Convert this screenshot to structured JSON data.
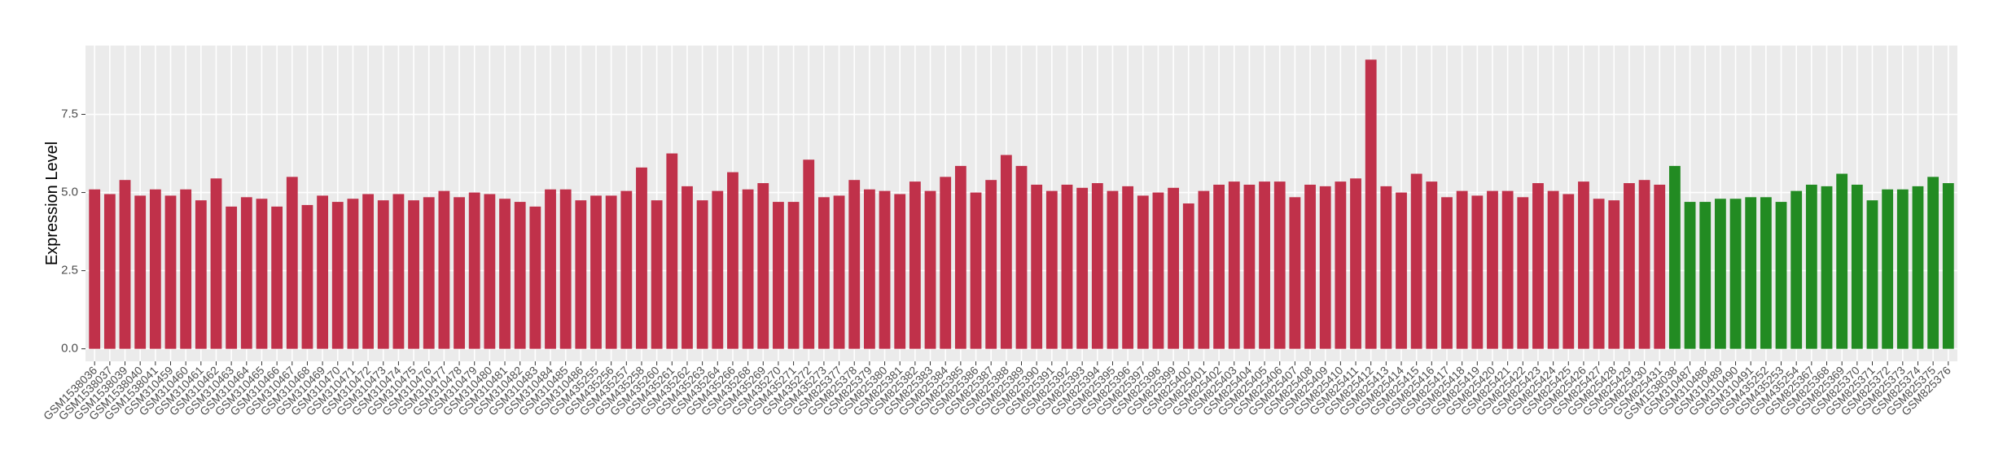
{
  "chart_data": {
    "type": "bar",
    "y_label": "Expression Level",
    "categories": [
      "GSM1538036",
      "GSM1538037",
      "GSM1538039",
      "GSM1538040",
      "GSM1538041",
      "GSM310459",
      "GSM310460",
      "GSM310461",
      "GSM310462",
      "GSM310463",
      "GSM310464",
      "GSM310465",
      "GSM310466",
      "GSM310467",
      "GSM310468",
      "GSM310469",
      "GSM310470",
      "GSM310471",
      "GSM310472",
      "GSM310473",
      "GSM310474",
      "GSM310475",
      "GSM310476",
      "GSM310477",
      "GSM310478",
      "GSM310479",
      "GSM310480",
      "GSM310481",
      "GSM310482",
      "GSM310483",
      "GSM310484",
      "GSM310485",
      "GSM310486",
      "GSM435255",
      "GSM435256",
      "GSM435257",
      "GSM435258",
      "GSM435260",
      "GSM435261",
      "GSM435262",
      "GSM435263",
      "GSM435264",
      "GSM435266",
      "GSM435268",
      "GSM435269",
      "GSM435270",
      "GSM435271",
      "GSM435272",
      "GSM435273",
      "GSM825377",
      "GSM825378",
      "GSM825379",
      "GSM825380",
      "GSM825381",
      "GSM825382",
      "GSM825383",
      "GSM825384",
      "GSM825385",
      "GSM825386",
      "GSM825387",
      "GSM825388",
      "GSM825389",
      "GSM825390",
      "GSM825391",
      "GSM825392",
      "GSM825393",
      "GSM825394",
      "GSM825395",
      "GSM825396",
      "GSM825397",
      "GSM825398",
      "GSM825399",
      "GSM825400",
      "GSM825401",
      "GSM825402",
      "GSM825403",
      "GSM825404",
      "GSM825405",
      "GSM825406",
      "GSM825407",
      "GSM825408",
      "GSM825409",
      "GSM825410",
      "GSM825411",
      "GSM825412",
      "GSM825413",
      "GSM825414",
      "GSM825415",
      "GSM825416",
      "GSM825417",
      "GSM825418",
      "GSM825419",
      "GSM825420",
      "GSM825421",
      "GSM825422",
      "GSM825423",
      "GSM825424",
      "GSM825425",
      "GSM825426",
      "GSM825427",
      "GSM825428",
      "GSM825429",
      "GSM825430",
      "GSM825431",
      "GSM1538038",
      "GSM310487",
      "GSM310488",
      "GSM310489",
      "GSM310490",
      "GSM310491",
      "GSM435252",
      "GSM435253",
      "GSM435254",
      "GSM825367",
      "GSM825368",
      "GSM825369",
      "GSM825370",
      "GSM825371",
      "GSM825372",
      "GSM825373",
      "GSM825374",
      "GSM825375",
      "GSM825376"
    ],
    "values": [
      5.1,
      4.95,
      5.4,
      4.9,
      5.1,
      4.9,
      5.1,
      4.75,
      5.45,
      4.55,
      4.85,
      4.8,
      4.55,
      5.5,
      4.6,
      4.9,
      4.7,
      4.8,
      4.95,
      4.75,
      4.95,
      4.75,
      4.85,
      5.05,
      4.85,
      5.0,
      4.95,
      4.8,
      4.7,
      4.55,
      5.1,
      5.1,
      4.75,
      4.9,
      4.9,
      5.05,
      5.8,
      4.75,
      6.25,
      5.2,
      4.75,
      5.05,
      5.65,
      5.1,
      5.3,
      4.7,
      4.7,
      6.05,
      4.85,
      4.9,
      5.4,
      5.1,
      5.05,
      4.95,
      5.35,
      5.05,
      5.5,
      5.85,
      5.0,
      5.4,
      6.2,
      5.85,
      5.25,
      5.05,
      5.25,
      5.15,
      5.3,
      5.05,
      5.2,
      4.9,
      5.0,
      5.15,
      4.65,
      5.05,
      5.25,
      5.35,
      5.25,
      5.35,
      5.35,
      4.85,
      5.25,
      5.2,
      5.35,
      5.45,
      9.25,
      5.2,
      5.0,
      5.6,
      5.35,
      4.85,
      5.05,
      4.9,
      5.05,
      5.05,
      4.85,
      5.3,
      5.05,
      4.95,
      5.35,
      4.8,
      4.75,
      5.3,
      5.4,
      5.25,
      5.85,
      4.7,
      4.7,
      4.8,
      4.8,
      4.85,
      4.85,
      4.7,
      5.05,
      5.25,
      5.2,
      5.6,
      5.25,
      4.75,
      5.1,
      5.1,
      5.2,
      5.5,
      5.3
    ],
    "colors": [
      "#c0314a",
      "#c0314a",
      "#c0314a",
      "#c0314a",
      "#c0314a",
      "#c0314a",
      "#c0314a",
      "#c0314a",
      "#c0314a",
      "#c0314a",
      "#c0314a",
      "#c0314a",
      "#c0314a",
      "#c0314a",
      "#c0314a",
      "#c0314a",
      "#c0314a",
      "#c0314a",
      "#c0314a",
      "#c0314a",
      "#c0314a",
      "#c0314a",
      "#c0314a",
      "#c0314a",
      "#c0314a",
      "#c0314a",
      "#c0314a",
      "#c0314a",
      "#c0314a",
      "#c0314a",
      "#c0314a",
      "#c0314a",
      "#c0314a",
      "#c0314a",
      "#c0314a",
      "#c0314a",
      "#c0314a",
      "#c0314a",
      "#c0314a",
      "#c0314a",
      "#c0314a",
      "#c0314a",
      "#c0314a",
      "#c0314a",
      "#c0314a",
      "#c0314a",
      "#c0314a",
      "#c0314a",
      "#c0314a",
      "#c0314a",
      "#c0314a",
      "#c0314a",
      "#c0314a",
      "#c0314a",
      "#c0314a",
      "#c0314a",
      "#c0314a",
      "#c0314a",
      "#c0314a",
      "#c0314a",
      "#c0314a",
      "#c0314a",
      "#c0314a",
      "#c0314a",
      "#c0314a",
      "#c0314a",
      "#c0314a",
      "#c0314a",
      "#c0314a",
      "#c0314a",
      "#c0314a",
      "#c0314a",
      "#c0314a",
      "#c0314a",
      "#c0314a",
      "#c0314a",
      "#c0314a",
      "#c0314a",
      "#c0314a",
      "#c0314a",
      "#c0314a",
      "#c0314a",
      "#c0314a",
      "#c0314a",
      "#c0314a",
      "#c0314a",
      "#c0314a",
      "#c0314a",
      "#c0314a",
      "#c0314a",
      "#c0314a",
      "#c0314a",
      "#c0314a",
      "#c0314a",
      "#c0314a",
      "#c0314a",
      "#c0314a",
      "#c0314a",
      "#c0314a",
      "#c0314a",
      "#c0314a",
      "#c0314a",
      "#c0314a",
      "#c0314a",
      "#228b22",
      "#228b22",
      "#228b22",
      "#228b22",
      "#228b22",
      "#228b22",
      "#228b22",
      "#228b22",
      "#228b22",
      "#228b22",
      "#228b22",
      "#228b22",
      "#228b22",
      "#228b22",
      "#228b22",
      "#228b22",
      "#228b22",
      "#228b22",
      "#228b22"
    ],
    "ylim": [
      -0.4,
      9.7
    ],
    "yticks": [
      0.0,
      2.5,
      5.0,
      7.5
    ],
    "ytick_labels": [
      "0.0",
      "2.5",
      "5.0",
      "7.5"
    ],
    "grid": true
  }
}
